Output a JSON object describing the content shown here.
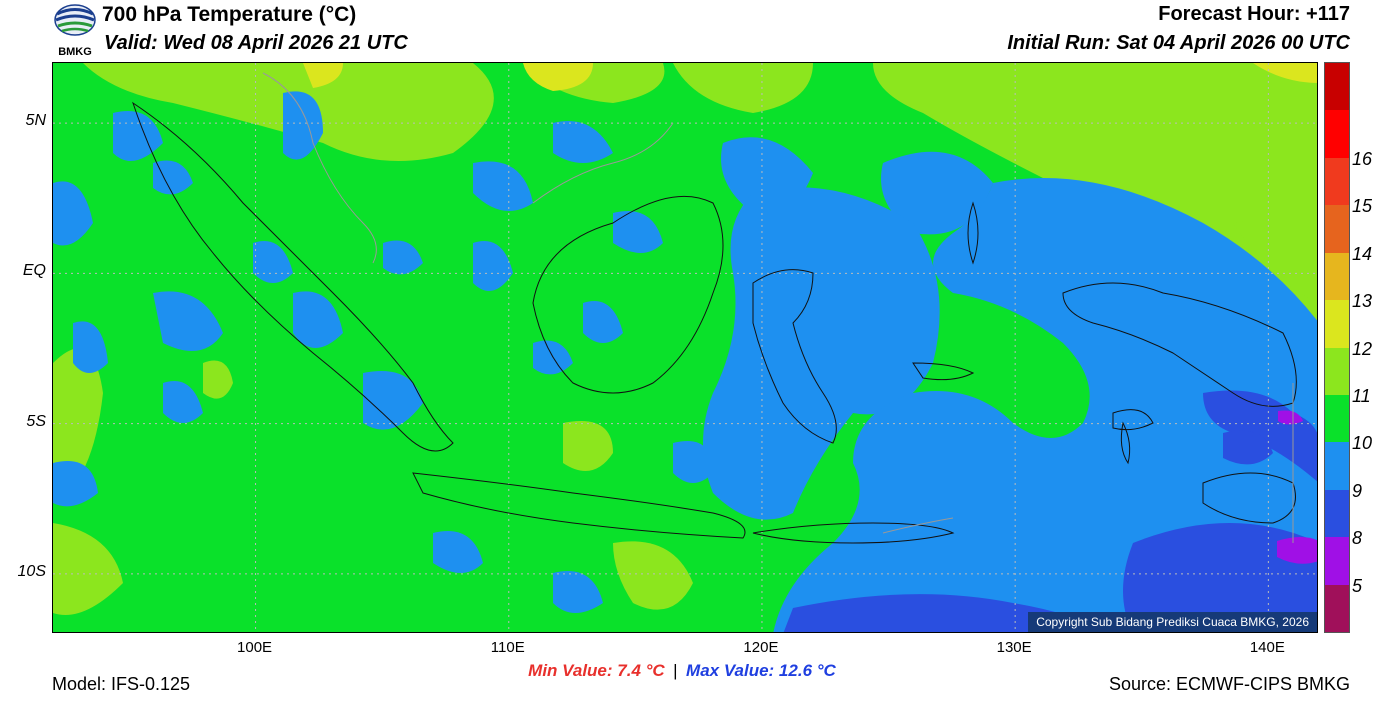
{
  "header": {
    "title": "700 hPa Temperature (°C)",
    "valid": "Valid: Wed 08 April 2026 21 UTC",
    "forecast_hour": "Forecast Hour: +117",
    "initial_run": "Initial Run: Sat 04 April 2026 00 UTC"
  },
  "logo": {
    "label": "BMKG",
    "icon": "bmkg-logo-icon"
  },
  "map": {
    "lat_range": [
      -12,
      7
    ],
    "lon_range": [
      92,
      142
    ],
    "lat_labels": [
      {
        "lat": 5,
        "label": "5N"
      },
      {
        "lat": 0,
        "label": "EQ"
      },
      {
        "lat": -5,
        "label": "5S"
      },
      {
        "lat": -10,
        "label": "10S"
      }
    ],
    "lon_labels": [
      {
        "lon": 100,
        "label": "100E"
      },
      {
        "lon": 110,
        "label": "110E"
      },
      {
        "lon": 120,
        "label": "120E"
      },
      {
        "lon": 130,
        "label": "130E"
      },
      {
        "lon": 140,
        "label": "140E"
      }
    ],
    "colors": {
      "c9": "#1e90f0",
      "c10": "#0ae12a",
      "c11": "#8ce61e",
      "c12": "#dbe61e",
      "c8": "#2a4fe0",
      "c5": "#a010e6"
    },
    "copyright": "Copyright Sub Bidang Prediksi Cuaca BMKG, 2026"
  },
  "legend": {
    "colors": [
      "#a0105a",
      "#a010e6",
      "#2a4fe0",
      "#1e90f0",
      "#0ae12a",
      "#8ce61e",
      "#dbe61e",
      "#e6b61e",
      "#e6641e",
      "#f03a1e",
      "#ff0000",
      "#c80000"
    ],
    "labels": [
      "5",
      "8",
      "9",
      "10",
      "11",
      "12",
      "13",
      "14",
      "15",
      "16"
    ]
  },
  "footer": {
    "model": "Model: IFS-0.125",
    "min_value": "Min Value: 7.4 °C",
    "separator": "|",
    "max_value": "Max Value: 12.6 °C",
    "source": "Source: ECMWF-CIPS BMKG",
    "min_color": "#e8302c",
    "max_color": "#1f3fe0"
  }
}
